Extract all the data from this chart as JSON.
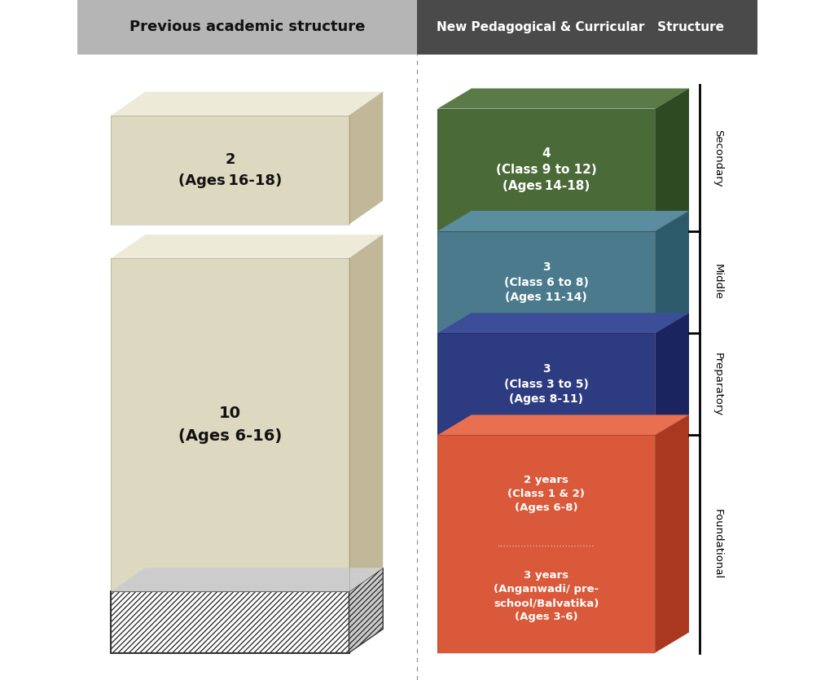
{
  "bg_color": "#ffffff",
  "title_left": "Previous academic structure",
  "title_right": "New Pedagogical & Curricular   Structure",
  "header_left_color": "#b5b5b5",
  "header_right_color": "#4a4a4a",
  "left_face": "#ddd8c0",
  "left_top": "#eeead8",
  "left_side": "#c0b898",
  "blocks_right": [
    {
      "label": "4\n(Class 9 to 12)\n(Ages 14-18)",
      "face": "#d9593a",
      "top": "#e87050",
      "side": "#aa3820",
      "text": "#ffffff"
    },
    {
      "label": "3\n(Class 6 to 8)\n(Ages 11-14)",
      "face": "#2d3b80",
      "top": "#3d4e99",
      "side": "#1a2560",
      "text": "#ffffff"
    },
    {
      "label": "3\n(Class 3 to 5)\n(Ages 8-11)",
      "face": "#4a7a8c",
      "top": "#5a8d9f",
      "side": "#2d5a6a",
      "text": "#ffffff"
    },
    {
      "label": "2 years\n(Class 1 & 2)\n(Ages 6-8)\n.................................\n3 years\n(Anganwadi/ pre-\nschool/Balvatika)\n(Ages 3-6)",
      "face": "#4a6a38",
      "top": "#5a7a48",
      "side": "#2d4a22",
      "text": "#ffffff"
    }
  ],
  "bracket_labels": [
    "Secondary",
    "Middle",
    "Preparatory",
    "Foundational"
  ]
}
